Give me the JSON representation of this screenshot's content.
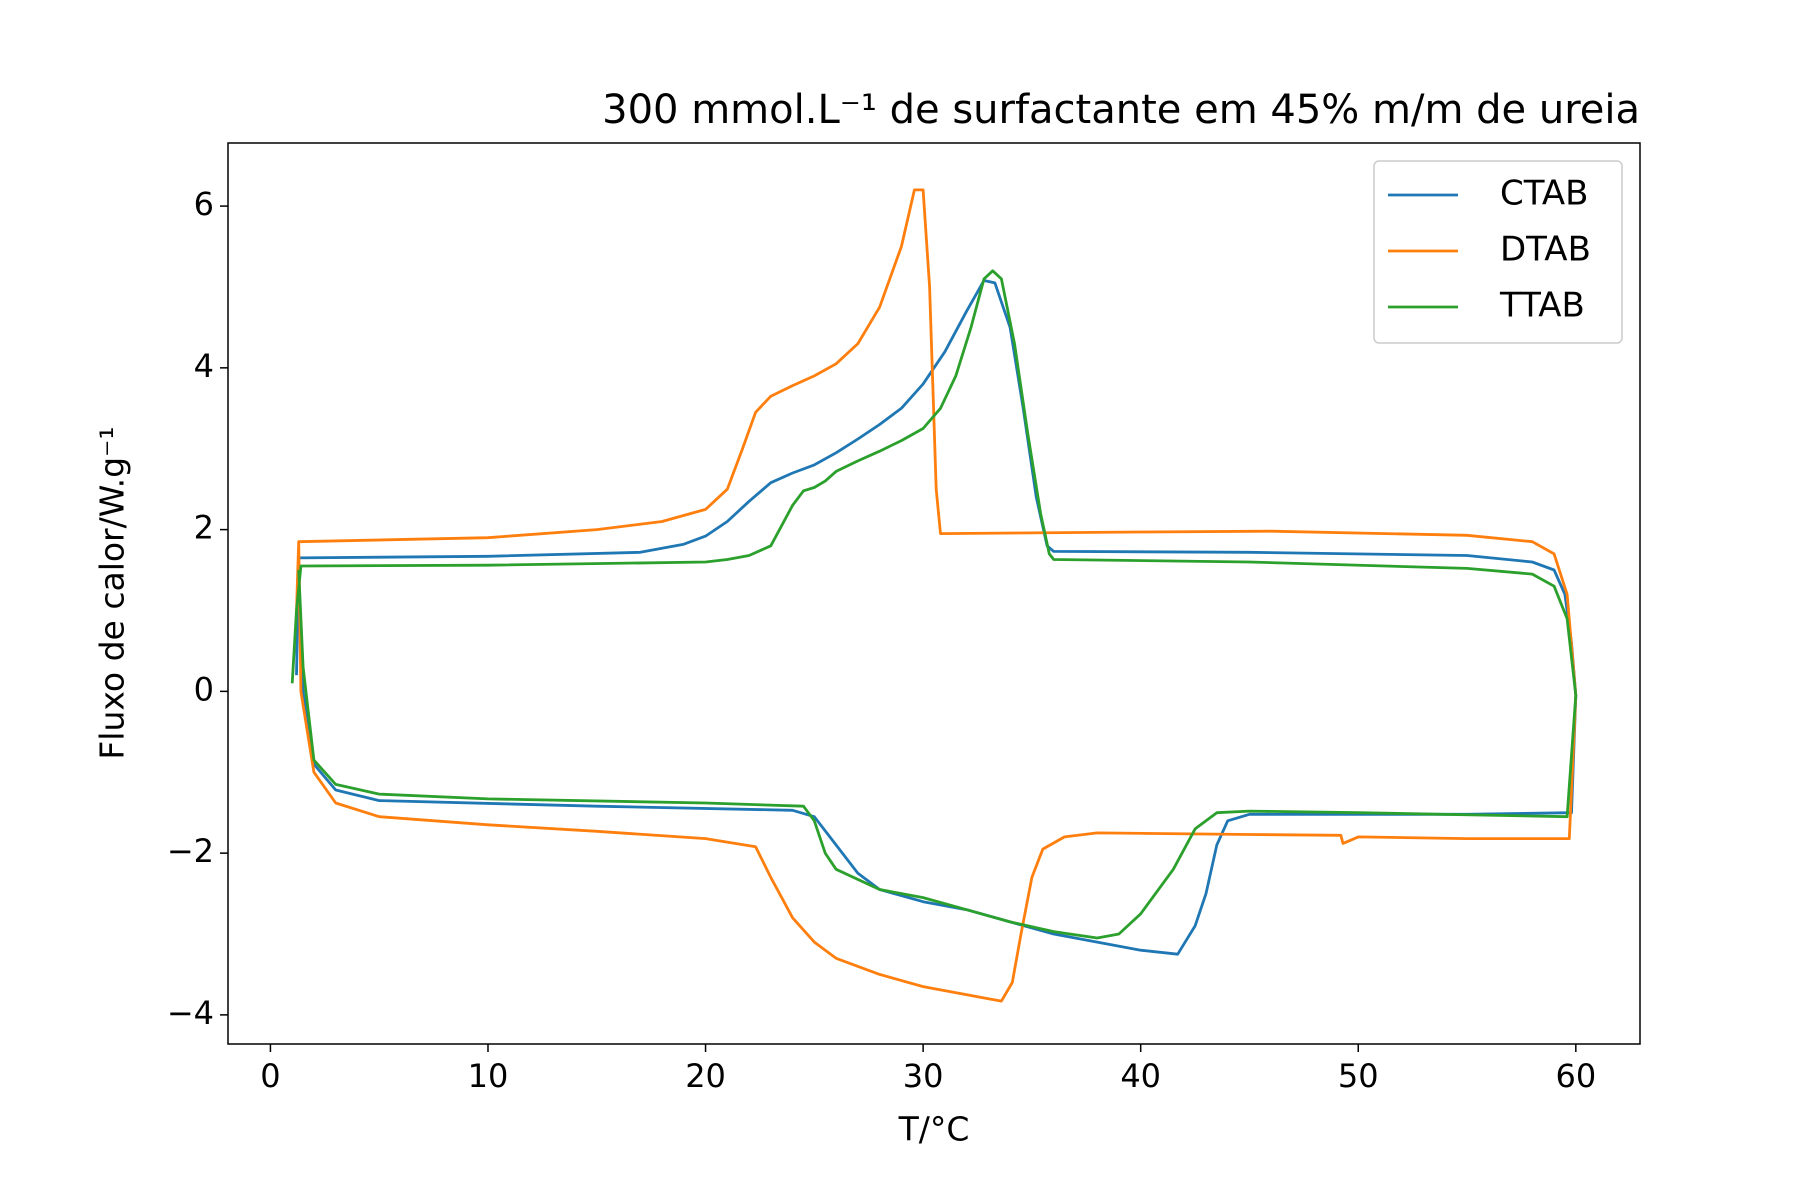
{
  "chart_data": {
    "type": "line",
    "title": "300 mmol.L⁻¹ de surfactante em 45% m/m de ureia",
    "xlabel": "T/°C",
    "ylabel": "Fluxo de calor/W.g⁻¹",
    "xlim": [
      -1.95,
      62.95
    ],
    "ylim": [
      -4.36,
      6.78
    ],
    "xticks": [
      0,
      10,
      20,
      30,
      40,
      50,
      60
    ],
    "yticks": [
      {
        "value": -4,
        "label": "−4"
      },
      {
        "value": -2,
        "label": "−2"
      },
      0,
      2,
      4,
      6
    ],
    "legend": "upper right",
    "series": [
      {
        "name": "CTAB",
        "color": "#1f77b4",
        "x": [
          1.2,
          1.3,
          10,
          17,
          19,
          20,
          21,
          22,
          23,
          24,
          25,
          26,
          27,
          28,
          29,
          30,
          31,
          32,
          32.8,
          33.3,
          34,
          34.6,
          35.2,
          35.7,
          36,
          45,
          55,
          58,
          59,
          59.5,
          59.8,
          60,
          59.8,
          55,
          45,
          44,
          43.5,
          43,
          42.5,
          41.7,
          40,
          38,
          36,
          34,
          32,
          30,
          28,
          27,
          26,
          25,
          24,
          15,
          5,
          3,
          2,
          1.5,
          1.25
        ],
        "values": [
          0.2,
          1.65,
          1.67,
          1.72,
          1.82,
          1.92,
          2.1,
          2.35,
          2.58,
          2.7,
          2.8,
          2.95,
          3.12,
          3.3,
          3.5,
          3.8,
          4.2,
          4.7,
          5.08,
          5.05,
          4.5,
          3.5,
          2.4,
          1.8,
          1.73,
          1.72,
          1.68,
          1.6,
          1.5,
          1.2,
          0.6,
          -0.05,
          -1.5,
          -1.52,
          -1.52,
          -1.6,
          -1.9,
          -2.5,
          -2.9,
          -3.25,
          -3.2,
          -3.1,
          -3.0,
          -2.85,
          -2.7,
          -2.6,
          -2.45,
          -2.25,
          -1.9,
          -1.55,
          -1.47,
          -1.42,
          -1.35,
          -1.22,
          -0.9,
          0,
          1.4
        ]
      },
      {
        "name": "DTAB",
        "color": "#ff7f0e",
        "x": [
          1.2,
          1.3,
          10,
          15,
          18,
          20,
          21,
          21.7,
          22.3,
          23,
          24,
          25,
          26,
          27,
          28,
          29,
          29.6,
          30,
          30.3,
          30.6,
          30.8,
          40,
          46,
          55,
          58,
          59,
          59.6,
          60,
          59.7,
          55,
          50,
          49.3,
          49.2,
          45,
          38,
          36.5,
          35.5,
          35,
          34.5,
          34.1,
          33.6,
          33,
          30,
          28,
          26,
          25,
          24,
          23,
          22.3,
          20,
          15,
          10,
          5,
          3,
          2,
          1.4,
          1.3
        ],
        "values": [
          1.0,
          1.85,
          1.9,
          2.0,
          2.1,
          2.25,
          2.5,
          3.0,
          3.45,
          3.65,
          3.78,
          3.9,
          4.05,
          4.3,
          4.75,
          5.5,
          6.2,
          6.2,
          5.0,
          2.5,
          1.95,
          1.97,
          1.98,
          1.93,
          1.85,
          1.7,
          1.2,
          -0.05,
          -1.82,
          -1.82,
          -1.8,
          -1.88,
          -1.78,
          -1.77,
          -1.75,
          -1.8,
          -1.95,
          -2.3,
          -3.0,
          -3.6,
          -3.83,
          -3.8,
          -3.65,
          -3.5,
          -3.3,
          -3.1,
          -2.8,
          -2.3,
          -1.92,
          -1.82,
          -1.73,
          -1.65,
          -1.55,
          -1.38,
          -1.0,
          0,
          1.85
        ]
      },
      {
        "name": "TTAB",
        "color": "#2ca02c",
        "x": [
          1.0,
          1.2,
          1.4,
          10,
          20,
          21,
          22,
          23,
          23.5,
          24,
          24.5,
          25,
          25.5,
          26,
          27,
          28,
          29,
          30,
          30.8,
          31.5,
          32.2,
          32.8,
          33.2,
          33.6,
          34.2,
          34.8,
          35.4,
          35.8,
          36,
          45,
          55,
          58,
          59,
          59.6,
          60,
          59.6,
          50,
          45,
          43.5,
          42.5,
          41.5,
          40,
          39,
          38,
          36,
          34,
          32,
          30,
          28,
          26,
          25.5,
          25,
          24.5,
          20,
          10,
          5,
          3,
          2,
          1.5,
          1.3
        ],
        "values": [
          0.1,
          1.0,
          1.55,
          1.56,
          1.6,
          1.63,
          1.68,
          1.8,
          2.05,
          2.3,
          2.48,
          2.52,
          2.6,
          2.72,
          2.85,
          2.97,
          3.1,
          3.25,
          3.5,
          3.9,
          4.5,
          5.1,
          5.2,
          5.1,
          4.3,
          3.2,
          2.2,
          1.7,
          1.63,
          1.6,
          1.52,
          1.45,
          1.3,
          0.9,
          -0.05,
          -1.55,
          -1.5,
          -1.48,
          -1.5,
          -1.7,
          -2.2,
          -2.75,
          -3.0,
          -3.05,
          -2.97,
          -2.85,
          -2.7,
          -2.55,
          -2.45,
          -2.2,
          -2.0,
          -1.6,
          -1.42,
          -1.38,
          -1.33,
          -1.27,
          -1.15,
          -0.85,
          0.3,
          1.5
        ]
      }
    ]
  }
}
